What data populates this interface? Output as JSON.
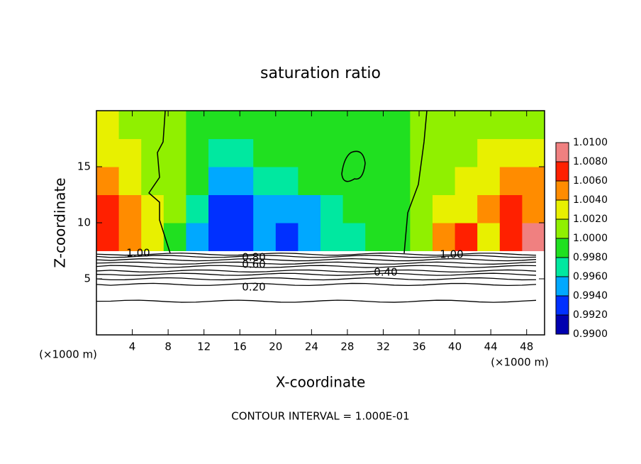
{
  "chart_data": {
    "type": "contour",
    "title": "saturation ratio",
    "xlabel": "X-coordinate",
    "ylabel": "Z-coordinate",
    "x_unit_label": "(×1000 m)",
    "y_unit_label": "(×1000 m)",
    "footer": "CONTOUR INTERVAL = 1.000E-01",
    "xlim": [
      0,
      50
    ],
    "ylim": [
      0,
      20
    ],
    "xticks": [
      4,
      8,
      12,
      16,
      20,
      24,
      28,
      32,
      36,
      40,
      44,
      48
    ],
    "yticks": [
      5,
      10,
      15
    ],
    "field": {
      "x_edges": [
        0,
        2.5,
        5,
        7.5,
        10,
        12.5,
        15,
        17.5,
        20,
        22.5,
        25,
        27.5,
        30,
        32.5,
        35,
        37.5,
        40,
        42.5,
        45,
        47.5,
        50
      ],
      "z_edges": [
        7.5,
        10,
        12.5,
        15,
        17.5,
        20
      ],
      "values": [
        [
          1.007,
          1.005,
          1.002,
          0.9985,
          0.995,
          0.993,
          0.992,
          0.994,
          0.993,
          0.995,
          0.997,
          0.9975,
          0.999,
          0.9995,
          1.001,
          1.004,
          1.006,
          1.003,
          1.006,
          1.008
        ],
        [
          1.007,
          1.004,
          1.002,
          1.0005,
          0.997,
          0.993,
          0.993,
          0.995,
          0.994,
          0.995,
          0.997,
          0.998,
          0.9985,
          0.9995,
          1.0005,
          1.002,
          1.003,
          1.005,
          1.007,
          1.005
        ],
        [
          1.005,
          1.003,
          1.001,
          1.0005,
          0.998,
          0.995,
          0.995,
          0.996,
          0.997,
          0.998,
          0.9985,
          0.9985,
          0.999,
          0.9995,
          1.0005,
          1.001,
          1.002,
          1.003,
          1.005,
          1.004
        ],
        [
          1.003,
          1.002,
          1.001,
          1.0005,
          0.999,
          0.997,
          0.997,
          0.998,
          0.9985,
          0.999,
          0.9995,
          0.9995,
          0.9995,
          0.9995,
          1.0005,
          1.001,
          1.001,
          1.002,
          1.002,
          1.002
        ],
        [
          1.002,
          1.001,
          1.0005,
          1.0003,
          0.9995,
          0.999,
          0.999,
          0.9995,
          0.9995,
          0.9995,
          0.9995,
          0.9995,
          0.9995,
          0.9998,
          1.0005,
          1.001,
          1.001,
          1.001,
          1.001,
          1.0015
        ]
      ]
    },
    "contours": {
      "levels": [
        1,
        0.9,
        0.8,
        0.7,
        0.6,
        0.5,
        0.4,
        0.3,
        0.2,
        0.1
      ],
      "z": [
        7.2,
        7.0,
        6.7,
        6.4,
        6.1,
        5.7,
        5.4,
        5.0,
        4.5,
        3.0
      ]
    },
    "contour_labels": [
      {
        "value": 1,
        "label": "1.00"
      },
      {
        "value": 1,
        "label": "1.00"
      },
      {
        "value": 0.8,
        "label": "0.80"
      },
      {
        "value": 0.6,
        "label": "0.60"
      },
      {
        "value": 0.4,
        "label": "0.40"
      },
      {
        "value": 0.2,
        "label": "0.20"
      }
    ],
    "colorbar": {
      "ticks": [
        {
          "value": 1.01,
          "label": "1.0100"
        },
        {
          "value": 1.008,
          "label": "1.0080"
        },
        {
          "value": 1.006,
          "label": "1.0060"
        },
        {
          "value": 1.004,
          "label": "1.0040"
        },
        {
          "value": 1.002,
          "label": "1.0020"
        },
        {
          "value": 1,
          "label": "1.0000"
        },
        {
          "value": 0.998,
          "label": "0.9980"
        },
        {
          "value": 0.996,
          "label": "0.9960"
        },
        {
          "value": 0.994,
          "label": "0.9940"
        },
        {
          "value": 0.992,
          "label": "0.9920"
        },
        {
          "value": 0.99,
          "label": "0.9900"
        }
      ],
      "colors": [
        "#f08080",
        "#ff2000",
        "#ff8c00",
        "#e8f000",
        "#90f000",
        "#20e020",
        "#00e8a0",
        "#00a8ff",
        "#0030ff",
        "#0000b0"
      ]
    }
  }
}
